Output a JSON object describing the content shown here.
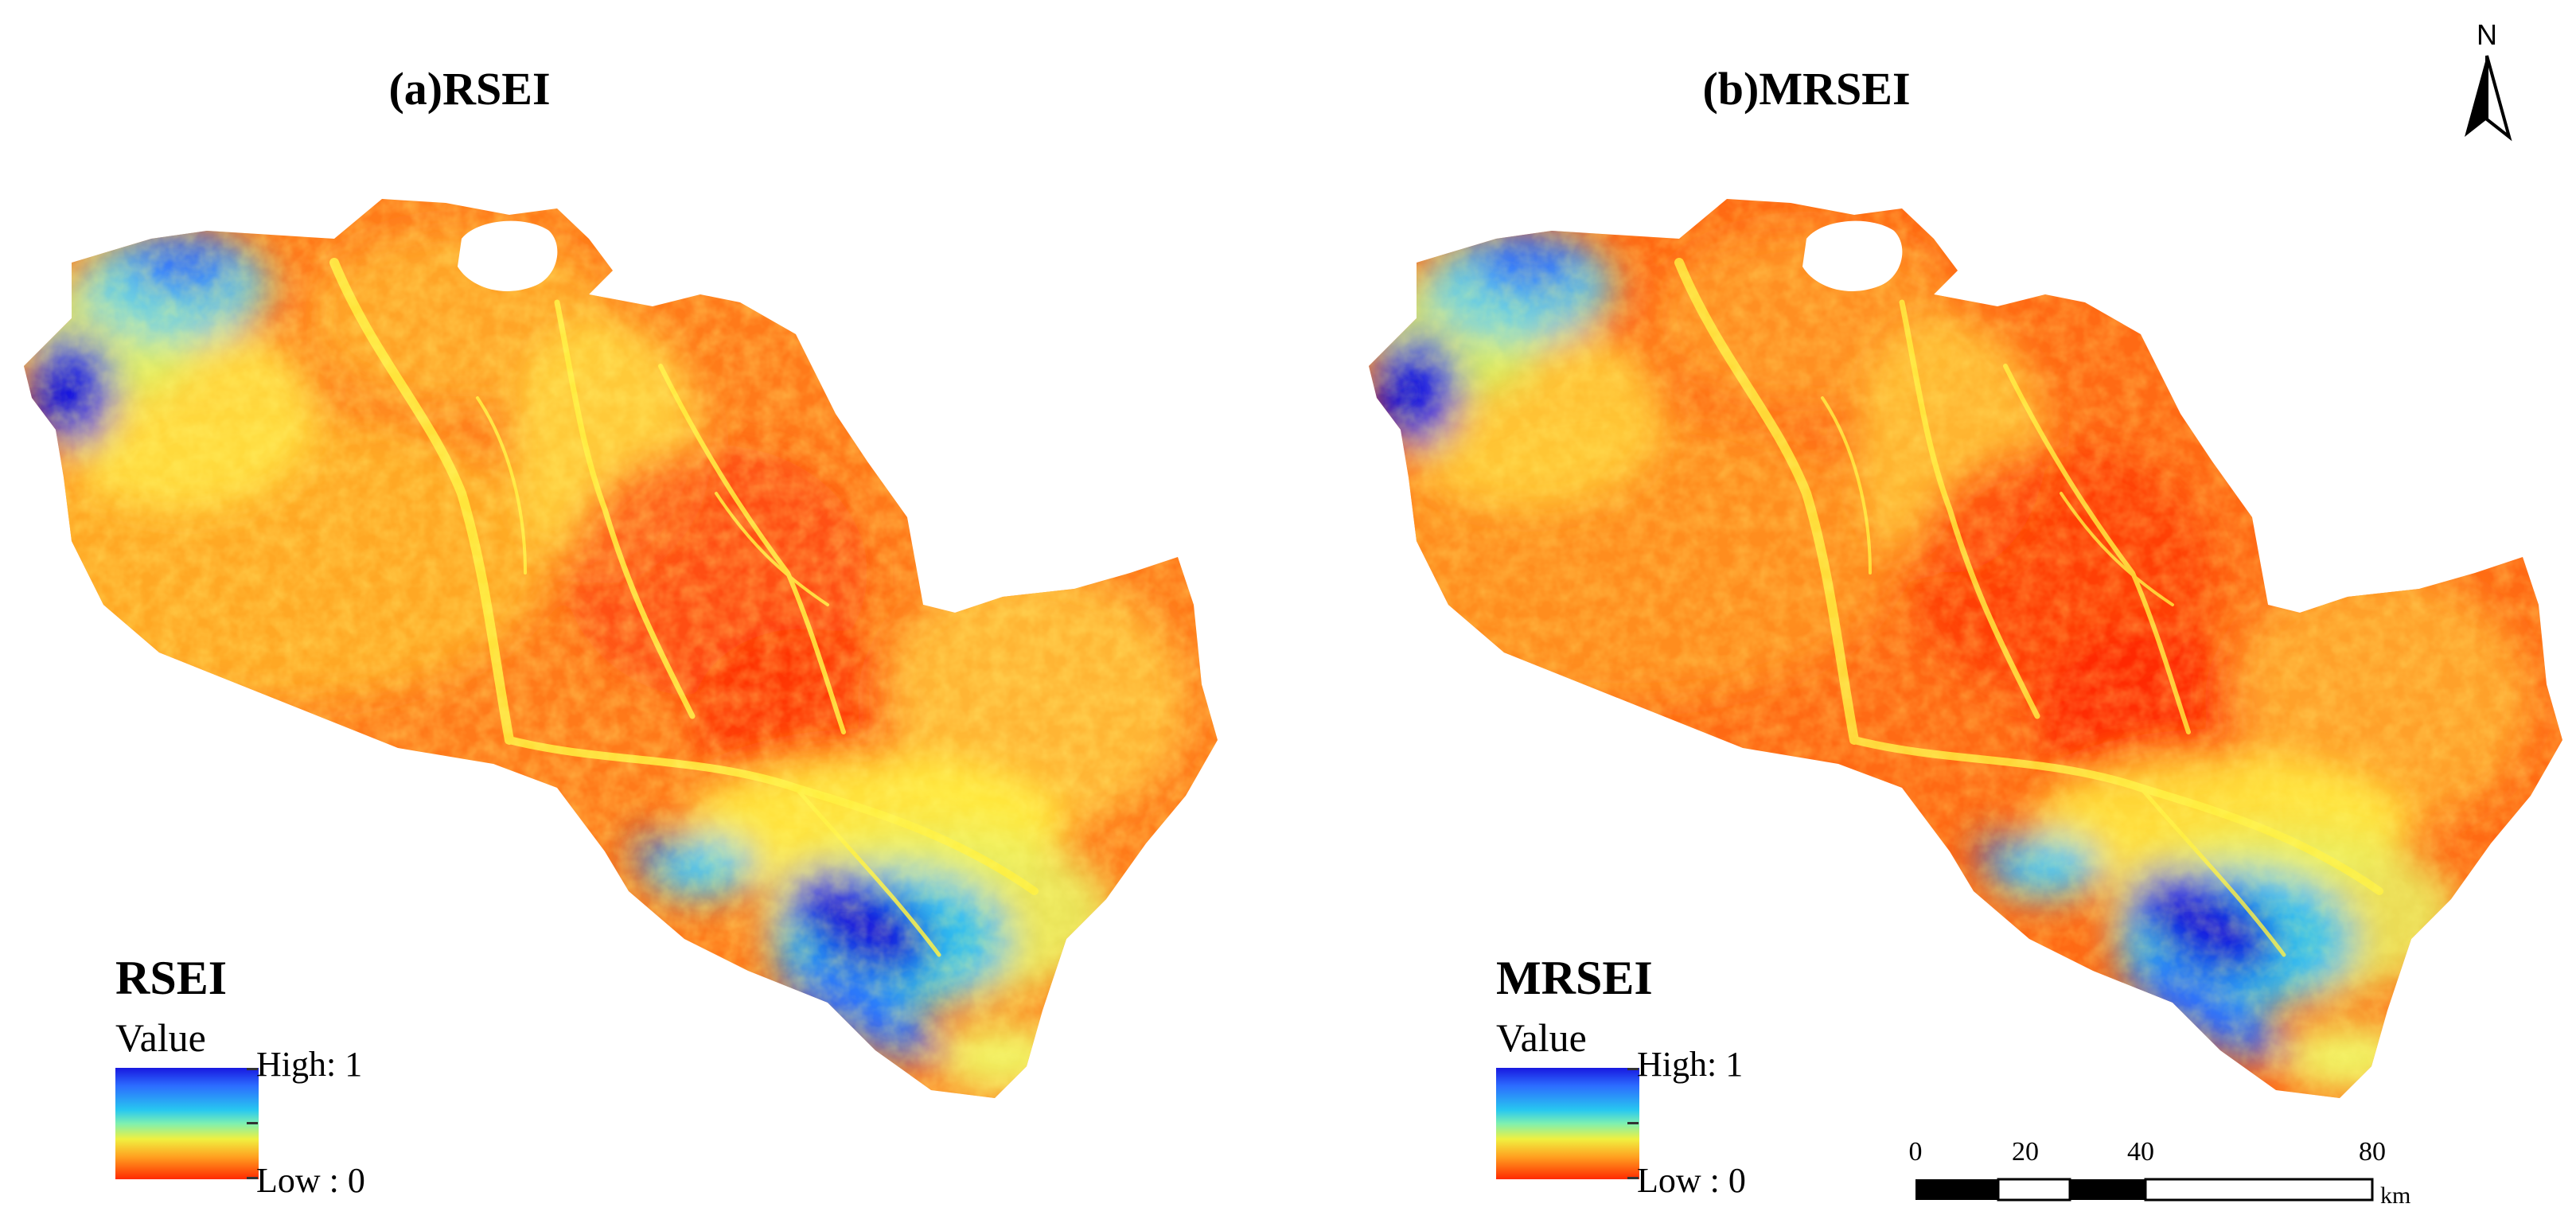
{
  "panels": [
    {
      "title": "(a)RSEI",
      "legend": {
        "title": "RSEI",
        "subtitle": "Value",
        "high_label": "High: 1",
        "low_label": "Low : 0"
      }
    },
    {
      "title": "(b)MRSEI",
      "legend": {
        "title": "MRSEI",
        "subtitle": "Value",
        "high_label": "High: 1",
        "low_label": "Low : 0"
      }
    }
  ],
  "north_arrow": {
    "label": "N"
  },
  "scale_bar": {
    "ticks": [
      "0",
      "20",
      "40",
      "80"
    ],
    "unit": "km"
  },
  "colors": {
    "high": "#1818e0",
    "mid": "#f0f040",
    "low": "#ff2a00",
    "region_base": "#ff7a1a"
  }
}
